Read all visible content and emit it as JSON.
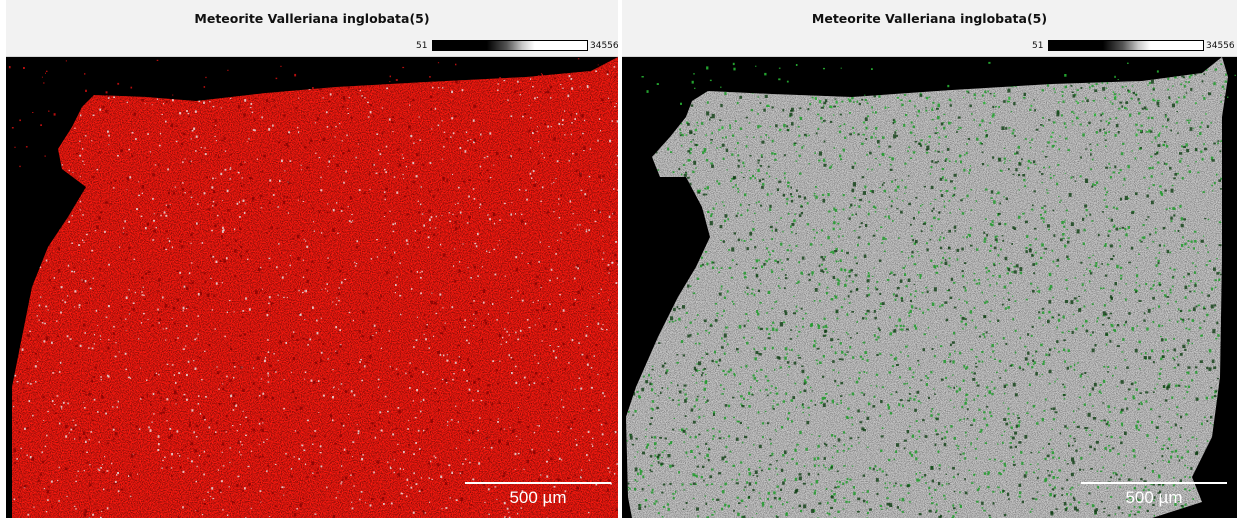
{
  "panels": [
    {
      "title": "Meteorite Valleriana inglobata(5)",
      "scale_min": "51",
      "scale_max": "34556",
      "scalebar_label": "500 µm",
      "map_color": "#ff1a10",
      "speck_color": "#e8e8e8"
    },
    {
      "title": "Meteorite Valleriana inglobata(5)",
      "scale_min": "51",
      "scale_max": "34556",
      "scalebar_label": "500 µm",
      "map_color": "#c9c9c9",
      "speck_color": "#1f9a2a"
    }
  ]
}
